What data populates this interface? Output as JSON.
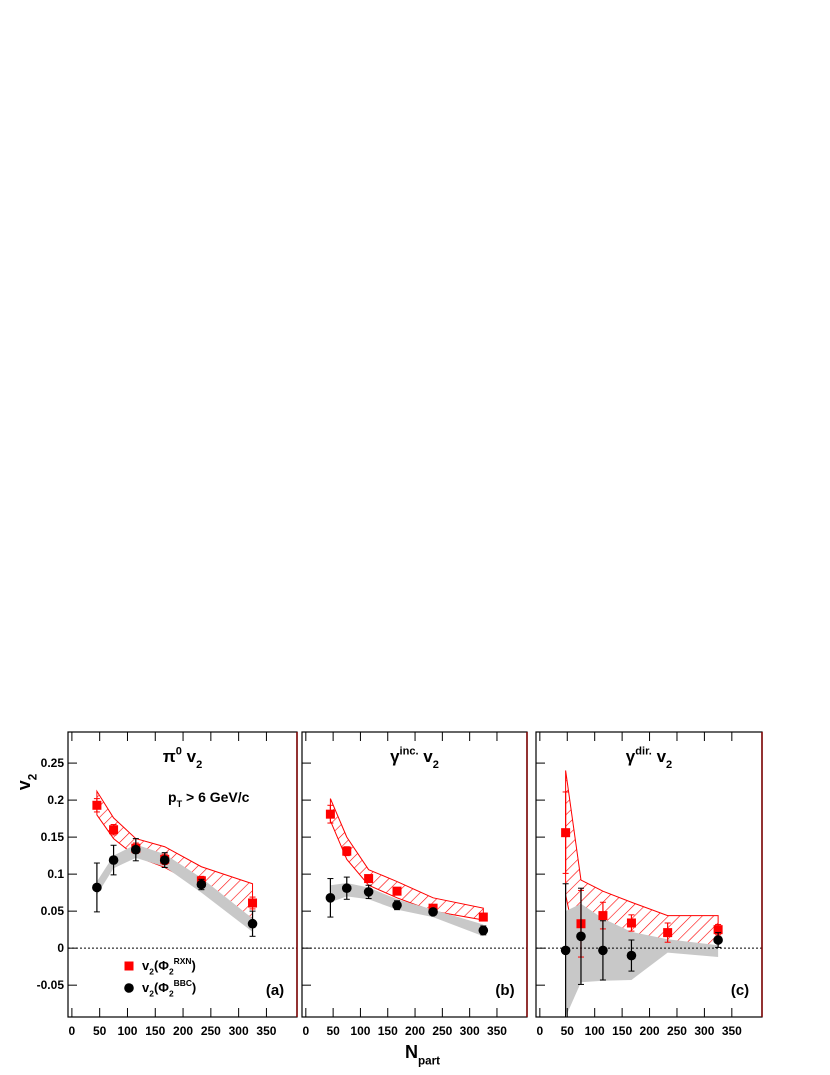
{
  "chart_data": [
    {
      "type": "scatter",
      "title": [
        "π",
        "0",
        " v",
        "2"
      ],
      "panel_label": "(a)",
      "y_label": [
        "v",
        "2"
      ],
      "annotation": [
        "p",
        "T",
        " > 6 GeV/c"
      ],
      "x": [
        45,
        75,
        115,
        167,
        233,
        325
      ],
      "xlim": [
        -7,
        405
      ],
      "ylim": [
        -0.093,
        0.292
      ],
      "xticks": [
        0,
        50,
        100,
        150,
        200,
        250,
        300,
        350
      ],
      "yticks": [
        -0.05,
        0,
        0.05,
        0.1,
        0.15,
        0.2,
        0.25
      ],
      "ytick_labels": true,
      "zero_line": true,
      "series": [
        {
          "name": [
            "v",
            "2",
            "(Φ",
            "2",
            "RXN",
            ")"
          ],
          "color": "#ff0000",
          "marker": "square",
          "band_style": "hatch",
          "values": [
            0.193,
            0.16,
            0.135,
            0.12,
            0.091,
            0.061
          ],
          "errors": [
            0.009,
            0.007,
            0.007,
            0.007,
            0.006,
            0.008
          ],
          "band_upper": [
            0.212,
            0.176,
            0.148,
            0.137,
            0.11,
            0.087
          ],
          "band_lower": [
            0.18,
            0.148,
            0.124,
            0.109,
            0.082,
            0.04
          ]
        },
        {
          "name": [
            "v",
            "2",
            "(Φ",
            "2",
            "BBC",
            ")"
          ],
          "color": "#000000",
          "marker": "circle",
          "band_style": "gray",
          "values": [
            0.082,
            0.119,
            0.133,
            0.119,
            0.086,
            0.033
          ],
          "errors": [
            0.033,
            0.02,
            0.015,
            0.01,
            0.007,
            0.017
          ],
          "band_upper": [
            0.09,
            0.125,
            0.14,
            0.127,
            0.095,
            0.04
          ],
          "band_lower": [
            0.072,
            0.108,
            0.122,
            0.11,
            0.075,
            0.022
          ]
        }
      ]
    },
    {
      "type": "scatter",
      "title": [
        "γ",
        "inc.",
        " v",
        "2"
      ],
      "panel_label": "(b)",
      "x_label": [
        "N",
        "part"
      ],
      "x": [
        45,
        75,
        115,
        167,
        233,
        325
      ],
      "xlim": [
        -7,
        405
      ],
      "ylim": [
        -0.093,
        0.292
      ],
      "xticks": [
        0,
        50,
        100,
        150,
        200,
        250,
        300,
        350
      ],
      "yticks": [
        -0.05,
        0,
        0.05,
        0.1,
        0.15,
        0.2,
        0.25
      ],
      "ytick_labels": false,
      "zero_line": true,
      "series": [
        {
          "color": "#ff0000",
          "marker": "square",
          "band_style": "hatch",
          "values": [
            0.181,
            0.131,
            0.094,
            0.077,
            0.054,
            0.042
          ],
          "errors": [
            0.012,
            0.006,
            0.004,
            0.004,
            0.004,
            0.005
          ],
          "band_upper": [
            0.202,
            0.15,
            0.106,
            0.09,
            0.068,
            0.054
          ],
          "band_lower": [
            0.172,
            0.12,
            0.085,
            0.068,
            0.05,
            0.038
          ]
        },
        {
          "color": "#000000",
          "marker": "circle",
          "band_style": "gray",
          "values": [
            0.068,
            0.081,
            0.076,
            0.058,
            0.049,
            0.024
          ],
          "errors": [
            0.026,
            0.015,
            0.009,
            0.006,
            0.004,
            0.006
          ],
          "band_upper": [
            0.085,
            0.088,
            0.082,
            0.066,
            0.052,
            0.032
          ],
          "band_lower": [
            0.062,
            0.07,
            0.066,
            0.052,
            0.042,
            0.016
          ]
        }
      ]
    },
    {
      "type": "scatter",
      "title": [
        "γ",
        "dir.",
        " v",
        "2"
      ],
      "panel_label": "(c)",
      "x": [
        47,
        75,
        115,
        167,
        233,
        325
      ],
      "xlim": [
        -7,
        405
      ],
      "ylim": [
        -0.093,
        0.292
      ],
      "xticks": [
        0,
        50,
        100,
        150,
        200,
        250,
        300,
        350
      ],
      "yticks": [
        -0.05,
        0,
        0.05,
        0.1,
        0.15,
        0.2,
        0.25
      ],
      "ytick_labels": false,
      "zero_line": true,
      "series": [
        {
          "color": "#ff0000",
          "marker": "square",
          "band_style": "hatch",
          "values": [
            0.156,
            0.033,
            0.044,
            0.034,
            0.021,
            0.025
          ],
          "errors": [
            0.055,
            0.045,
            0.018,
            0.011,
            0.013,
            0.007
          ],
          "band_upper": [
            0.24,
            0.092,
            0.077,
            0.062,
            0.044,
            0.044
          ],
          "band_lower": [
            0.072,
            -0.026,
            0.006,
            0.006,
            -0.003,
            0.003
          ]
        },
        {
          "color": "#000000",
          "marker": "circle",
          "band_style": "gray",
          "values": [
            -0.003,
            0.016,
            -0.003,
            -0.01,
            null,
            0.011
          ],
          "errors": [
            0.09,
            0.065,
            0.04,
            0.021,
            null,
            0.01
          ],
          "band_upper": [
            0.05,
            0.06,
            0.04,
            0.022,
            0.012,
            0.004
          ],
          "band_lower": [
            -0.093,
            -0.046,
            -0.044,
            -0.043,
            -0.006,
            -0.012
          ]
        }
      ]
    }
  ]
}
